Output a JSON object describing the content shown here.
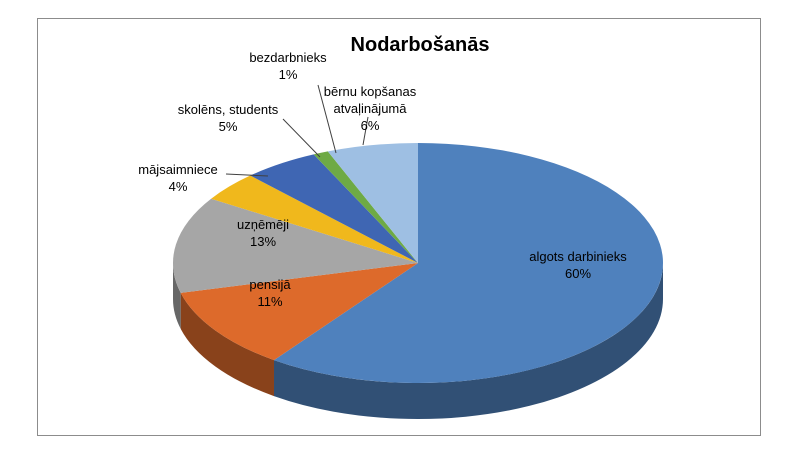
{
  "chart_data": {
    "type": "pie",
    "title": "Nodarbošanās",
    "unit": "%",
    "slices": [
      {
        "label": "algots darbinieks",
        "value": 60,
        "value_label": "60%",
        "color": "#4f81bd"
      },
      {
        "label": "pensijā",
        "value": 11,
        "value_label": "11%",
        "color": "#dd6a2b"
      },
      {
        "label": "uzņēmēji",
        "value": 13,
        "value_label": "13%",
        "color": "#a6a6a6"
      },
      {
        "label": "mājsaimniece",
        "value": 4,
        "value_label": "4%",
        "color": "#f0b81c"
      },
      {
        "label": "skolēns, students",
        "value": 5,
        "value_label": "5%",
        "color": "#3f66b3"
      },
      {
        "label": "bezdarbnieks",
        "value": 1,
        "value_label": "1%",
        "color": "#6eaa45"
      },
      {
        "label": "bērnu kopšanas atvaļinājumā",
        "value": 6,
        "value_label": "6%",
        "color": "#9ebfe3"
      }
    ],
    "legend": "none",
    "three_d": true
  }
}
